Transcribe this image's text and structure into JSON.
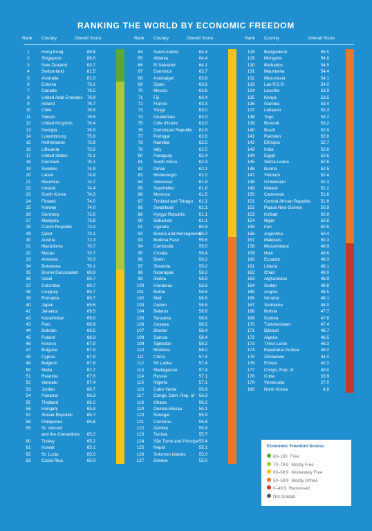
{
  "title": "RANKING THE WORLD BY ECONOMIC FREEDOM",
  "headers": {
    "rank": "Rank",
    "country": "Country",
    "score": "Overall Score"
  },
  "colors": {
    "free": "#5aa83c",
    "mostly_free": "#a9c83a",
    "moderately_free": "#f4c31c",
    "mostly_unfree": "#e8792a",
    "repressed": "#c8372d",
    "not_graded": "#555555"
  },
  "legend": {
    "title": "Economic Freedom Scores",
    "items": [
      {
        "range": "80–100",
        "label": "Free",
        "color": "#5aa83c"
      },
      {
        "range": "70–79.9",
        "label": "Mostly Free",
        "color": "#a9c83a"
      },
      {
        "range": "60–69.9",
        "label": "Moderately Free",
        "color": "#f4c31c"
      },
      {
        "range": "50–59.9",
        "label": "Mostly Unfree",
        "color": "#e8792a"
      },
      {
        "range": "0–49.9",
        "label": "Repressed",
        "color": "#c8372d"
      },
      {
        "range": "",
        "label": "Not Graded",
        "color": "#555555"
      }
    ]
  },
  "chart_data": {
    "type": "table",
    "title": "RANKING THE WORLD BY ECONOMIC FREEDOM",
    "columns": [
      "Rank",
      "Country",
      "Overall Score"
    ],
    "rows": [
      [
        1,
        "Hong Kong",
        "89.8"
      ],
      [
        2,
        "Singapore",
        "88.6"
      ],
      [
        3,
        "New Zealand",
        "83.7"
      ],
      [
        4,
        "Switzerland",
        "81.5"
      ],
      [
        5,
        "Australia",
        "81.0"
      ],
      [
        6,
        "Estonia",
        "79.1"
      ],
      [
        7,
        "Canada",
        "78.5"
      ],
      [
        8,
        "United Arab Emirates",
        "76.9"
      ],
      [
        9,
        "Ireland",
        "76.7"
      ],
      [
        10,
        "Chile",
        "76.5"
      ],
      [
        11,
        "Taiwan",
        "76.5"
      ],
      [
        12,
        "United Kingdom",
        "76.4"
      ],
      [
        13,
        "Georgia",
        "76.0"
      ],
      [
        14,
        "Luxembourg",
        "75.9"
      ],
      [
        15,
        "Netherlands",
        "75.8"
      ],
      [
        16,
        "Lithuania",
        "75.8"
      ],
      [
        17,
        "United States",
        "75.1"
      ],
      [
        18,
        "Denmark",
        "75.1"
      ],
      [
        19,
        "Sweden",
        "74.9"
      ],
      [
        20,
        "Latvia",
        "74.8"
      ],
      [
        21,
        "Mauritius",
        "74.7"
      ],
      [
        22,
        "Iceland",
        "74.4"
      ],
      [
        23,
        "South Korea",
        "74.3"
      ],
      [
        24,
        "Finland",
        "74.0"
      ],
      [
        25,
        "Norway",
        "74.0"
      ],
      [
        26,
        "Germany",
        "73.8"
      ],
      [
        27,
        "Malaysia",
        "73.8"
      ],
      [
        28,
        "Czech Republic",
        "73.3"
      ],
      [
        29,
        "Qatar",
        "73.1"
      ],
      [
        30,
        "Austria",
        "72.3"
      ],
      [
        31,
        "Macedonia",
        "70.7"
      ],
      [
        32,
        "Macau",
        "70.7"
      ],
      [
        33,
        "Armenia",
        "70.3"
      ],
      [
        34,
        "Botswana",
        "70.1"
      ],
      [
        35,
        "Brunei Darussalam",
        "69.8"
      ],
      [
        36,
        "Israel",
        "69.7"
      ],
      [
        37,
        "Colombia",
        "69.7"
      ],
      [
        38,
        "Uruguay",
        "69.7"
      ],
      [
        39,
        "Romania",
        "69.7"
      ],
      [
        40,
        "Japan",
        "69.6"
      ],
      [
        41,
        "Jamaica",
        "69.5"
      ],
      [
        42,
        "Kazakhstan",
        "69.0"
      ],
      [
        43,
        "Peru",
        "68.9"
      ],
      [
        44,
        "Bahrain",
        "68.5"
      ],
      [
        45,
        "Poland",
        "68.3"
      ],
      [
        46,
        "Kosovo",
        "67.9"
      ],
      [
        47,
        "Bulgaria",
        "67.9"
      ],
      [
        48,
        "Cyprus",
        "67.9"
      ],
      [
        49,
        "Belgium",
        "67.8"
      ],
      [
        50,
        "Malta",
        "67.7"
      ],
      [
        51,
        "Rwanda",
        "67.6"
      ],
      [
        52,
        "Vanuatu",
        "67.4"
      ],
      [
        53,
        "Jordan",
        "66.7"
      ],
      [
        54,
        "Panama",
        "66.3"
      ],
      [
        55,
        "Thailand",
        "66.2"
      ],
      [
        56,
        "Hungary",
        "65.8"
      ],
      [
        57,
        "Slovak Republic",
        "65.7"
      ],
      [
        58,
        "Philippines",
        "65.6"
      ],
      [
        59,
        "St. Vincent and the Grenadines",
        "65.2"
      ],
      [
        60,
        "Turkey",
        "65.2"
      ],
      [
        61,
        "Kuwait",
        "65.1"
      ],
      [
        62,
        "St. Lucia",
        "65.0"
      ],
      [
        63,
        "Costa Rica",
        "65.0"
      ],
      [
        64,
        "Saudi Arabia",
        "64.4"
      ],
      [
        65,
        "Albania",
        "64.4"
      ],
      [
        66,
        "El Salvador",
        "64.1"
      ],
      [
        67,
        "Dominica",
        "63.7"
      ],
      [
        68,
        "Azerbaijan",
        "63.6"
      ],
      [
        69,
        "Spain",
        "63.6"
      ],
      [
        70,
        "Mexico",
        "63.6"
      ],
      [
        71,
        "Fiji",
        "63.4"
      ],
      [
        72,
        "France",
        "63.3"
      ],
      [
        73,
        "Tonga",
        "63.0"
      ],
      [
        74,
        "Guatemala",
        "63.0"
      ],
      [
        75,
        "Côte d'Ivoire",
        "63.0"
      ],
      [
        76,
        "Dominican Republic",
        "62.9"
      ],
      [
        77,
        "Portugal",
        "62.6"
      ],
      [
        78,
        "Namibia",
        "62.5"
      ],
      [
        79,
        "Italy",
        "62.5"
      ],
      [
        80,
        "Paraguay",
        "62.4"
      ],
      [
        81,
        "South Africa",
        "62.3"
      ],
      [
        82,
        "Oman",
        "62.1"
      ],
      [
        83,
        "Montenegro",
        "62.0"
      ],
      [
        84,
        "Indonesia",
        "61.9"
      ],
      [
        85,
        "Seychelles",
        "61.8"
      ],
      [
        86,
        "Morocco",
        "61.5"
      ],
      [
        87,
        "Trinidad and Tobago",
        "61.2"
      ],
      [
        88,
        "Swaziland",
        "61.1"
      ],
      [
        89,
        "Kyrgyz Republic",
        "61.1"
      ],
      [
        90,
        "Bahamas",
        "61.1"
      ],
      [
        91,
        "Uganda",
        "60.9"
      ],
      [
        92,
        "Bosnia and Herzegovina",
        "60.2"
      ],
      [
        93,
        "Burkina Faso",
        "59.6"
      ],
      [
        94,
        "Cambodia",
        "59.5"
      ],
      [
        95,
        "Croatia",
        "59.4"
      ],
      [
        96,
        "Benin",
        "59.2"
      ],
      [
        97,
        "Slovenia",
        "59.2"
      ],
      [
        98,
        "Nicaragua",
        "59.2"
      ],
      [
        99,
        "Serbia",
        "58.9"
      ],
      [
        100,
        "Honduras",
        "58.8"
      ],
      [
        101,
        "Belize",
        "58.6"
      ],
      [
        102,
        "Mali",
        "58.6"
      ],
      [
        103,
        "Gabon",
        "58.6"
      ],
      [
        104,
        "Belarus",
        "58.6"
      ],
      [
        105,
        "Tanzania",
        "58.6"
      ],
      [
        106,
        "Guyana",
        "58.5"
      ],
      [
        107,
        "Bhutan",
        "58.4"
      ],
      [
        108,
        "Samoa",
        "58.4"
      ],
      [
        109,
        "Tajikistan",
        "58.2"
      ],
      [
        110,
        "Moldova",
        "58.0"
      ],
      [
        111,
        "China",
        "57.4"
      ],
      [
        112,
        "Sri Lanka",
        "57.4"
      ],
      [
        113,
        "Madagascar",
        "57.4"
      ],
      [
        114,
        "Russia",
        "57.1"
      ],
      [
        115,
        "Nigeria",
        "57.1"
      ],
      [
        116,
        "Cabo Verde",
        "56.9"
      ],
      [
        117,
        "Congo, Dem. Rep. of",
        "56.3"
      ],
      [
        118,
        "Ghana",
        "56.2"
      ],
      [
        119,
        "Guinea-Bissau",
        "56.1"
      ],
      [
        120,
        "Senegal",
        "55.9"
      ],
      [
        121,
        "Comoros",
        "55.8"
      ],
      [
        122,
        "Zambia",
        "55.8"
      ],
      [
        123,
        "Tunisia",
        "55.7"
      ],
      [
        124,
        "São Tomé and Príncipe",
        "55.4"
      ],
      [
        125,
        "Nepal",
        "55.1"
      ],
      [
        126,
        "Solomon Islands",
        "55.0"
      ],
      [
        127,
        "Greece",
        "55.0"
      ],
      [
        128,
        "Bangladesh",
        "55.0"
      ],
      [
        129,
        "Mongolia",
        "54.8"
      ],
      [
        130,
        "Barbados",
        "54.5"
      ],
      [
        131,
        "Mauritania",
        "54.4"
      ],
      [
        132,
        "Micronesia",
        "54.1"
      ],
      [
        133,
        "Lao P.D.R.",
        "54.0"
      ],
      [
        134,
        "Lesotho",
        "53.9"
      ],
      [
        135,
        "Kenya",
        "53.5"
      ],
      [
        136,
        "Gambia",
        "53.4"
      ],
      [
        137,
        "Lebanon",
        "53.3"
      ],
      [
        138,
        "Togo",
        "53.2"
      ],
      [
        139,
        "Burundi",
        "53.2"
      ],
      [
        140,
        "Brazil",
        "52.9"
      ],
      [
        141,
        "Pakistan",
        "52.8"
      ],
      [
        142,
        "Ethiopia",
        "52.7"
      ],
      [
        143,
        "India",
        "52.6"
      ],
      [
        144,
        "Egypt",
        "52.6"
      ],
      [
        145,
        "Sierra Leone",
        "52.6"
      ],
      [
        146,
        "Burma",
        "52.5"
      ],
      [
        147,
        "Vietnam",
        "52.4"
      ],
      [
        148,
        "Uzbekistan",
        "52.3"
      ],
      [
        149,
        "Malawi",
        "52.2"
      ],
      [
        150,
        "Cameroon",
        "51.8"
      ],
      [
        151,
        "Central African Republic",
        "51.8"
      ],
      [
        152,
        "Papua New Guinea",
        "50.9"
      ],
      [
        153,
        "Kiribati",
        "50.9"
      ],
      [
        154,
        "Niger",
        "50.8"
      ],
      [
        155,
        "Iran",
        "50.5"
      ],
      [
        156,
        "Argentina",
        "50.4"
      ],
      [
        157,
        "Maldives",
        "50.3"
      ],
      [
        158,
        "Mozambique",
        "49.9"
      ],
      [
        159,
        "Haiti",
        "49.6"
      ],
      [
        160,
        "Ecuador",
        "49.3"
      ],
      [
        161,
        "Liberia",
        "49.1"
      ],
      [
        162,
        "Chad",
        "49.0"
      ],
      [
        163,
        "Afghanistan",
        "48.9"
      ],
      [
        164,
        "Sudan",
        "48.8"
      ],
      [
        165,
        "Angola",
        "48.5"
      ],
      [
        166,
        "Ukraine",
        "48.1"
      ],
      [
        167,
        "Suriname",
        "48.0"
      ],
      [
        168,
        "Bolivia",
        "47.7"
      ],
      [
        169,
        "Guinea",
        "47.6"
      ],
      [
        170,
        "Turkmenistan",
        "47.4"
      ],
      [
        171,
        "Djibouti",
        "46.7"
      ],
      [
        172,
        "Algeria",
        "46.5"
      ],
      [
        173,
        "Timor-Leste",
        "46.3"
      ],
      [
        174,
        "Equatorial Guinea",
        "45.0"
      ],
      [
        175,
        "Zimbabwe",
        "44.0"
      ],
      [
        176,
        "Eritrea",
        "42.2"
      ],
      [
        177,
        "Congo, Rep. of",
        "40.0"
      ],
      [
        178,
        "Cuba",
        "33.9"
      ],
      [
        179,
        "Venezuela",
        "27.0"
      ],
      [
        180,
        "North Korea",
        "4.9"
      ]
    ]
  }
}
